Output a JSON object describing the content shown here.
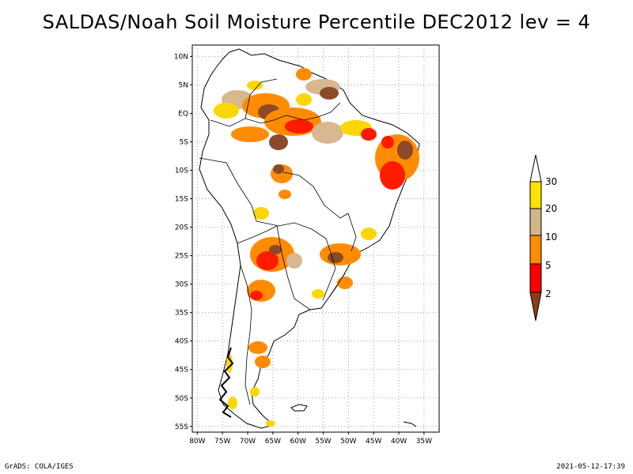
{
  "title": "SALDAS/Noah Soil Moisture Percentile DEC2012 lev = 4",
  "footer": {
    "left": "GrADS: COLA/IGES",
    "right": "2021-05-12-17:39"
  },
  "map": {
    "lon_range": [
      -81,
      -32
    ],
    "lat_range": [
      -56,
      12
    ],
    "lat_ticks": [
      "10N",
      "5N",
      "EQ",
      "5S",
      "10S",
      "15S",
      "20S",
      "25S",
      "30S",
      "35S",
      "40S",
      "45S",
      "50S",
      "55S"
    ],
    "lat_values": [
      10,
      5,
      0,
      -5,
      -10,
      -15,
      -20,
      -25,
      -30,
      -35,
      -40,
      -45,
      -50,
      -55
    ],
    "lon_ticks": [
      "80W",
      "75W",
      "70W",
      "65W",
      "60W",
      "55W",
      "50W",
      "45W",
      "40W",
      "35W"
    ],
    "lon_values": [
      -80,
      -75,
      -70,
      -65,
      -60,
      -55,
      -50,
      -45,
      -40,
      -35
    ],
    "grid": "dotted"
  },
  "colorbar": {
    "labels": [
      "30",
      "20",
      "10",
      "5",
      "2"
    ],
    "colors": [
      "#fde400",
      "#d3b58a",
      "#ff8b00",
      "#ff0000",
      "#8c3c14"
    ]
  },
  "shading_colors": {
    "p2": "#8c4a28",
    "p5": "#ff1a00",
    "p10": "#ff8c00",
    "p20": "#d8b890",
    "p30": "#fcd600"
  }
}
